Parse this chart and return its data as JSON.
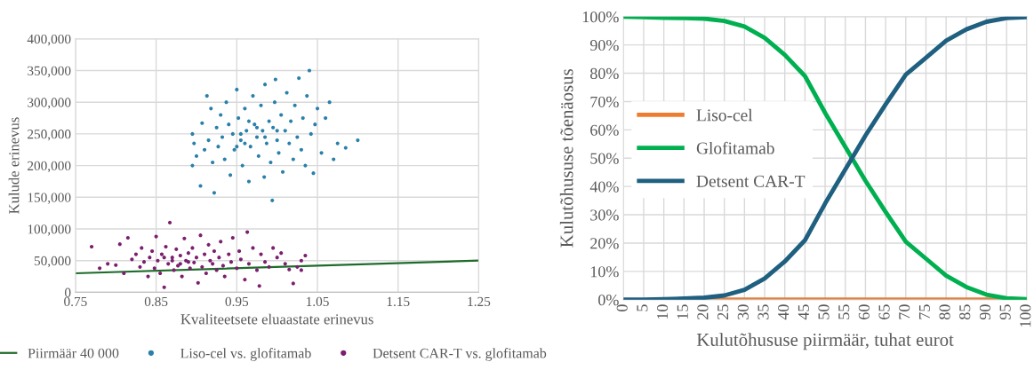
{
  "chart_data": [
    {
      "type": "scatter",
      "xlabel": "Kvaliteetsete eluaastate erinevus",
      "ylabel": "Kulude erinevus",
      "xlim": [
        0.75,
        1.25
      ],
      "xticks": [
        0.75,
        0.85,
        0.95,
        1.05,
        1.15,
        1.25
      ],
      "ylim": [
        0,
        400000
      ],
      "yticks": [
        {
          "value": 0,
          "label": "0"
        },
        {
          "value": 50000,
          "label": "50,000"
        },
        {
          "value": 100000,
          "label": "100,000"
        },
        {
          "value": 150000,
          "label": "150,000"
        },
        {
          "value": 200000,
          "label": "200,000"
        },
        {
          "value": 250000,
          "label": "250,000"
        },
        {
          "value": 300000,
          "label": "300,000"
        },
        {
          "value": 350000,
          "label": "350,000"
        },
        {
          "value": 400000,
          "label": "400,000"
        }
      ],
      "grid": true,
      "legend": "bottom",
      "series": [
        {
          "name": "Piirmäär 40 000",
          "type": "line",
          "color": "#1e6b2a",
          "x": [
            0.75,
            1.25
          ],
          "values": [
            30000,
            50000
          ]
        },
        {
          "name": "Liso-cel vs. glofitamab",
          "type": "scatter",
          "marker": "circle",
          "color": "#2a80aa",
          "x": [
            0.895,
            0.895,
            0.897,
            0.9,
            0.905,
            0.907,
            0.91,
            0.913,
            0.915,
            0.918,
            0.92,
            0.922,
            0.925,
            0.927,
            0.93,
            0.932,
            0.935,
            0.937,
            0.94,
            0.942,
            0.945,
            0.947,
            0.95,
            0.952,
            0.955,
            0.957,
            0.96,
            0.962,
            0.965,
            0.967,
            0.97,
            0.972,
            0.975,
            0.977,
            0.98,
            0.982,
            0.984,
            0.985,
            0.987,
            0.99,
            0.992,
            0.994,
            0.995,
            0.997,
            0.998,
            1.0,
            1.002,
            1.005,
            1.007,
            1.01,
            1.012,
            1.015,
            1.017,
            1.02,
            1.022,
            1.025,
            1.027,
            1.03,
            1.032,
            1.035,
            1.037,
            1.04,
            1.042,
            1.045,
            1.047,
            1.05,
            1.055,
            1.06,
            1.065,
            1.07,
            1.075,
            1.085,
            1.1,
            0.96,
            0.975,
            0.955,
            0.985,
            0.965,
            0.95,
            1.0
          ],
          "values": [
            250000,
            200000,
            235000,
            215000,
            168000,
            267000,
            225000,
            310000,
            240000,
            290000,
            205000,
            157000,
            260000,
            230000,
            280000,
            245000,
            210000,
            300000,
            265000,
            185000,
            250000,
            225000,
            320000,
            275000,
            240000,
            200000,
            290000,
            255000,
            175000,
            230000,
            310000,
            265000,
            245000,
            215000,
            295000,
            255000,
            182000,
            328000,
            235000,
            270000,
            205000,
            145000,
            260000,
            300000,
            336000,
            240000,
            220000,
            280000,
            190000,
            255000,
            315000,
            235000,
            270000,
            210000,
            295000,
            245000,
            338000,
            225000,
            275000,
            200000,
            310000,
            350000,
            250000,
            188000,
            265000,
            290000,
            220000,
            275000,
            300000,
            210000,
            235000,
            228000,
            240000,
            235000,
            260000,
            250000,
            245000,
            270000,
            230000,
            255000
          ]
        },
        {
          "name": "Detsent CAR-T vs. glofitamab",
          "type": "scatter",
          "marker": "circle",
          "color": "#7b1f6e",
          "x": [
            0.77,
            0.78,
            0.79,
            0.8,
            0.805,
            0.81,
            0.815,
            0.82,
            0.825,
            0.83,
            0.832,
            0.835,
            0.84,
            0.842,
            0.845,
            0.848,
            0.85,
            0.852,
            0.855,
            0.857,
            0.86,
            0.862,
            0.865,
            0.867,
            0.87,
            0.872,
            0.875,
            0.877,
            0.88,
            0.882,
            0.885,
            0.887,
            0.89,
            0.892,
            0.895,
            0.897,
            0.9,
            0.902,
            0.905,
            0.907,
            0.91,
            0.912,
            0.915,
            0.917,
            0.92,
            0.922,
            0.925,
            0.928,
            0.93,
            0.933,
            0.935,
            0.94,
            0.943,
            0.945,
            0.95,
            0.953,
            0.955,
            0.96,
            0.963,
            0.965,
            0.97,
            0.975,
            0.978,
            0.98,
            0.985,
            0.99,
            0.995,
            1.0,
            1.005,
            1.01,
            1.015,
            1.02,
            1.025,
            1.03,
            1.035,
            1.03,
            0.87,
            0.88,
            0.86,
            0.89
          ],
          "values": [
            72000,
            38000,
            45000,
            43000,
            76000,
            30000,
            86000,
            52000,
            60000,
            40000,
            70000,
            48000,
            25000,
            55000,
            65000,
            38000,
            88000,
            50000,
            30000,
            60000,
            8000,
            72000,
            45000,
            110000,
            55000,
            35000,
            68000,
            42000,
            58000,
            25000,
            85000,
            50000,
            62000,
            38000,
            70000,
            47000,
            55000,
            15000,
            90000,
            40000,
            60000,
            30000,
            75000,
            50000,
            45000,
            65000,
            35000,
            55000,
            80000,
            42000,
            25000,
            60000,
            48000,
            86000,
            38000,
            65000,
            52000,
            20000,
            95000,
            45000,
            70000,
            35000,
            10000,
            60000,
            48000,
            40000,
            70000,
            55000,
            62000,
            45000,
            36000,
            14000,
            40000,
            50000,
            58000,
            35000,
            50000,
            45000,
            55000,
            48000
          ]
        }
      ]
    },
    {
      "type": "line",
      "xlabel": "Kulutõhususe piirmäär, tuhat eurot",
      "ylabel": "Kulutõhususe tõenäosus",
      "categories": [
        "0",
        "5",
        "10",
        "15",
        "20",
        "25",
        "30",
        "35",
        "40",
        "45",
        "50",
        "55",
        "60",
        "65",
        "70",
        "75",
        "80",
        "85",
        "90",
        "95",
        "100"
      ],
      "ylim": [
        0,
        100
      ],
      "yticks": [
        {
          "value": 0,
          "label": "0%"
        },
        {
          "value": 10,
          "label": "10%"
        },
        {
          "value": 20,
          "label": "20%"
        },
        {
          "value": 30,
          "label": "30%"
        },
        {
          "value": 40,
          "label": "40%"
        },
        {
          "value": 50,
          "label": "50%"
        },
        {
          "value": 60,
          "label": "60%"
        },
        {
          "value": 70,
          "label": "70%"
        },
        {
          "value": 80,
          "label": "80%"
        },
        {
          "value": 90,
          "label": "90%"
        },
        {
          "value": 100,
          "label": "100%"
        }
      ],
      "grid": true,
      "legend": "center left",
      "series": [
        {
          "name": "Liso-cel",
          "color": "#ed7d31",
          "values": [
            null,
            null,
            null,
            null,
            0,
            0,
            0,
            0,
            0,
            0,
            0,
            0,
            0,
            0,
            0,
            0,
            0,
            0,
            0,
            0,
            0
          ]
        },
        {
          "name": "Glofitamab",
          "color": "#00b050",
          "values": [
            100,
            99.8,
            99.6,
            99.5,
            99.3,
            98.5,
            96.5,
            92.5,
            86.5,
            79,
            66,
            54,
            42,
            31,
            20.5,
            14.5,
            8.5,
            4.5,
            1.8,
            0.5,
            0.2
          ]
        },
        {
          "name": "Detsent CAR-T",
          "color": "#1f5f80",
          "values": [
            0,
            0,
            0.2,
            0.4,
            0.7,
            1.5,
            3.5,
            7.5,
            13.5,
            21,
            34,
            46,
            58,
            69,
            79.5,
            85.5,
            91.5,
            95.5,
            98.2,
            99.5,
            99.8
          ]
        }
      ]
    }
  ]
}
